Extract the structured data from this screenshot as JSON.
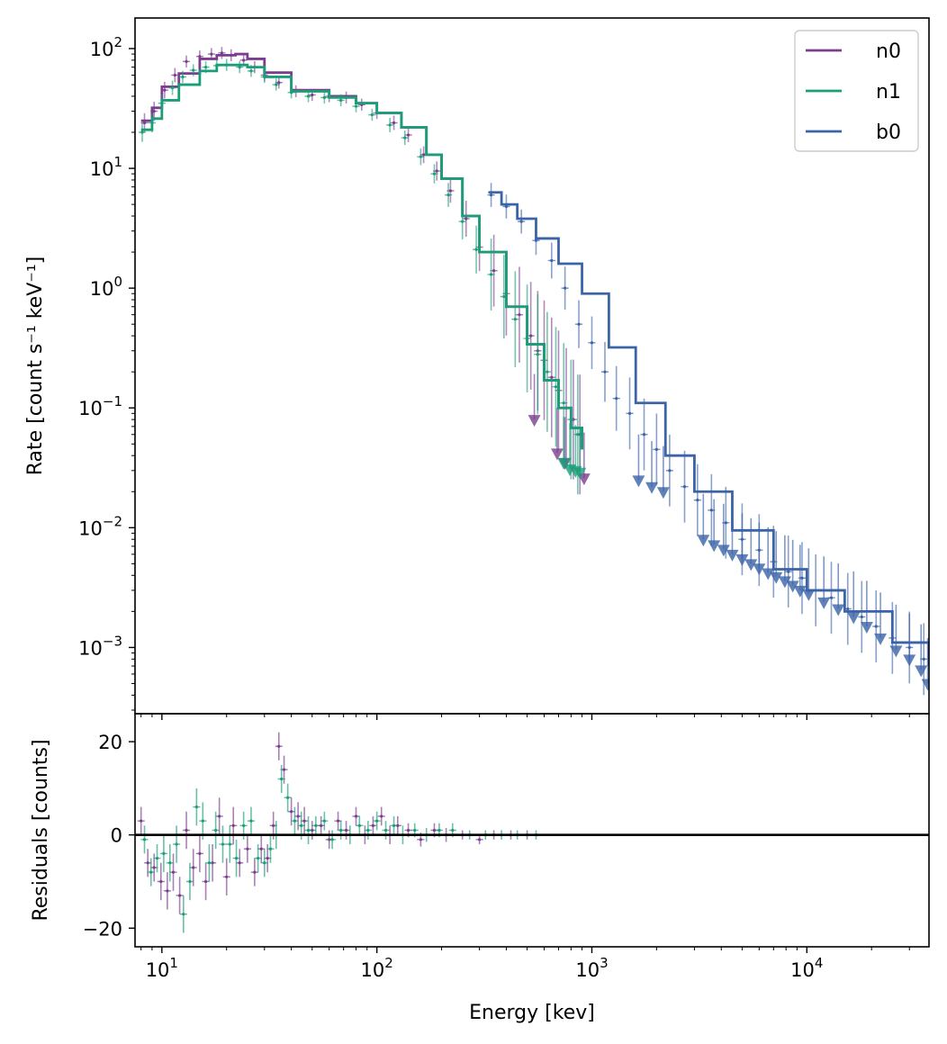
{
  "chart_data": [
    {
      "type": "line",
      "panel": "spectrum",
      "title": "",
      "xlabel": "",
      "ylabel": "Rate [count s⁻¹ keV⁻¹]",
      "xscale": "log",
      "yscale": "log",
      "xlim": [
        7.5,
        37000
      ],
      "ylim": [
        0.00028,
        180
      ],
      "x_ticks": [
        10,
        100,
        1000,
        10000
      ],
      "y_ticks": [
        0.001,
        0.01,
        0.1,
        1,
        10,
        100
      ],
      "y_tick_labels": [
        {
          "base": "10",
          "exp": "−3"
        },
        {
          "base": "10",
          "exp": "−2"
        },
        {
          "base": "10",
          "exp": "−1"
        },
        {
          "base": "10",
          "exp": "0"
        },
        {
          "base": "10",
          "exp": "1"
        },
        {
          "base": "10",
          "exp": "2"
        }
      ],
      "legend": {
        "placement": "top-right",
        "entries": [
          "n0",
          "n1",
          "b0"
        ]
      },
      "series": [
        {
          "name": "n0",
          "color": "#7b3d8f",
          "model": {
            "x": [
              8,
              9,
              10,
              12,
              15,
              18,
              22,
              25,
              30,
              40,
              60,
              80,
              100,
              130,
              170,
              200,
              250,
              300,
              400,
              500,
              600,
              700,
              800,
              900
            ],
            "y": [
              25,
              32,
              48,
              62,
              82,
              88,
              90,
              82,
              63,
              45,
              40,
              35,
              29,
              22,
              13,
              8.2,
              4.0,
              2.0,
              0.7,
              0.34,
              0.17,
              0.1,
              0.068,
              0.045
            ]
          },
          "data": {
            "x": [
              8.3,
              9.2,
              10.3,
              11.5,
              13,
              15,
              17,
              19,
              21,
              24,
              27,
              30,
              35,
              42,
              50,
              60,
              72,
              85,
              100,
              120,
              140,
              165,
              190,
              220,
              260,
              300,
              350,
              400,
              460,
              520,
              560,
              600,
              650,
              700,
              760,
              820,
              880
            ],
            "y": [
              24,
              30,
              45,
              60,
              78,
              86,
              90,
              92,
              88,
              80,
              70,
              60,
              52,
              44,
              41,
              40,
              39,
              34,
              29,
              24,
              19,
              13,
              9.5,
              6.5,
              3.8,
              2.2,
              1.4,
              0.9,
              0.6,
              0.4,
              0.3,
              0.25,
              0.18,
              0.14,
              0.1,
              0.08,
              0.06
            ],
            "err": [
              0.08,
              0.08,
              0.07,
              0.06,
              0.05,
              0.05,
              0.05,
              0.05,
              0.05,
              0.05,
              0.05,
              0.05,
              0.05,
              0.05,
              0.05,
              0.05,
              0.05,
              0.05,
              0.05,
              0.06,
              0.06,
              0.07,
              0.08,
              0.1,
              0.15,
              0.2,
              0.3,
              0.35,
              0.4,
              0.45,
              0.5,
              0.5,
              0.5,
              0.5,
              0.5,
              0.5,
              0.5
            ]
          },
          "upper_limits": {
            "x": [
              540,
              690,
              750,
              920
            ],
            "y": [
              0.08,
              0.042,
              0.035,
              0.026
            ]
          }
        },
        {
          "name": "n1",
          "color": "#1a9e78",
          "model": {
            "x": [
              8,
              9,
              10,
              12,
              15,
              18,
              22,
              25,
              30,
              40,
              60,
              80,
              100,
              130,
              170,
              200,
              250,
              300,
              400,
              500,
              600,
              700,
              800,
              900
            ],
            "y": [
              21,
              26,
              37,
              50,
              65,
              73,
              73,
              70,
              58,
              44,
              39,
              35,
              29,
              22,
              13,
              8.2,
              4.0,
              2.0,
              0.7,
              0.34,
              0.17,
              0.1,
              0.068,
              0.045
            ]
          },
          "data": {
            "x": [
              8.1,
              9,
              10,
              11.2,
              12.5,
              14,
              16,
              18,
              20,
              23,
              26,
              30,
              34,
              40,
              48,
              57,
              68,
              80,
              95,
              115,
              135,
              160,
              185,
              215,
              250,
              290,
              340,
              390,
              440,
              500,
              560,
              620,
              680,
              740,
              800,
              860
            ],
            "y": [
              20,
              24,
              35,
              47,
              58,
              66,
              70,
              72,
              73,
              70,
              65,
              58,
              50,
              43,
              40,
              39,
              37,
              33,
              28,
              23,
              18,
              12.5,
              9,
              6,
              3.6,
              2.1,
              1.3,
              0.85,
              0.55,
              0.38,
              0.28,
              0.2,
              0.15,
              0.11,
              0.08,
              0.06
            ],
            "err": [
              0.08,
              0.08,
              0.07,
              0.06,
              0.05,
              0.05,
              0.05,
              0.05,
              0.05,
              0.05,
              0.05,
              0.05,
              0.05,
              0.05,
              0.05,
              0.05,
              0.05,
              0.05,
              0.05,
              0.06,
              0.06,
              0.07,
              0.08,
              0.1,
              0.15,
              0.2,
              0.3,
              0.35,
              0.4,
              0.45,
              0.5,
              0.5,
              0.5,
              0.5,
              0.5,
              0.5
            ]
          },
          "upper_limits": {
            "x": [
              740,
              790,
              840,
              880
            ],
            "y": [
              0.035,
              0.031,
              0.03,
              0.029
            ]
          }
        },
        {
          "name": "b0",
          "color": "#3a63a8",
          "model": {
            "x": [
              330,
              380,
              450,
              550,
              700,
              900,
              1200,
              1600,
              2200,
              3000,
              4500,
              7000,
              10000,
              15000,
              25000,
              37000
            ],
            "y": [
              6.3,
              5.0,
              3.8,
              2.6,
              1.6,
              0.9,
              0.32,
              0.11,
              0.04,
              0.02,
              0.0095,
              0.0045,
              0.003,
              0.002,
              0.0011,
              0.0007
            ]
          },
          "data": {
            "x": [
              340,
              400,
              470,
              550,
              650,
              750,
              870,
              1000,
              1150,
              1300,
              1500,
              1750,
              2000,
              2300,
              2700,
              3100,
              3600,
              4200,
              5000,
              6000,
              7000,
              8200,
              9500,
              11000,
              13000,
              15500,
              18000,
              21000,
              25000,
              30000,
              35000
            ],
            "y": [
              6.0,
              4.8,
              3.6,
              2.5,
              1.7,
              1.0,
              0.5,
              0.35,
              0.2,
              0.12,
              0.09,
              0.06,
              0.045,
              0.03,
              0.022,
              0.017,
              0.014,
              0.011,
              0.008,
              0.0065,
              0.0052,
              0.0043,
              0.0038,
              0.003,
              0.0026,
              0.0021,
              0.0018,
              0.0015,
              0.0012,
              0.001,
              0.0008
            ],
            "err": [
              0.1,
              0.1,
              0.1,
              0.12,
              0.15,
              0.18,
              0.2,
              0.22,
              0.25,
              0.27,
              0.3,
              0.3,
              0.3,
              0.3,
              0.3,
              0.3,
              0.3,
              0.3,
              0.3,
              0.3,
              0.3,
              0.3,
              0.3,
              0.3,
              0.3,
              0.3,
              0.3,
              0.3,
              0.3,
              0.3,
              0.3
            ]
          },
          "upper_limits": {
            "x": [
              1650,
              1900,
              2150,
              3300,
              3700,
              4100,
              4500,
              5000,
              5500,
              6000,
              6600,
              7200,
              7900,
              8600,
              9300,
              10200,
              12000,
              14000,
              16500,
              19000,
              22000,
              26000,
              30000,
              34000,
              36500
            ],
            "y": [
              0.025,
              0.022,
              0.02,
              0.008,
              0.0072,
              0.0066,
              0.006,
              0.0055,
              0.005,
              0.0046,
              0.0042,
              0.0039,
              0.0036,
              0.0033,
              0.003,
              0.0028,
              0.0024,
              0.0021,
              0.0018,
              0.0015,
              0.0012,
              0.00095,
              0.0008,
              0.00065,
              0.0005
            ]
          }
        }
      ]
    },
    {
      "type": "scatter",
      "panel": "residuals",
      "title": "",
      "xlabel": "Energy [kev]",
      "ylabel": "Residuals [counts]",
      "xscale": "log",
      "yscale": "linear",
      "xlim": [
        7.5,
        37000
      ],
      "ylim": [
        -24,
        26
      ],
      "x_ticks": [
        10,
        100,
        1000,
        10000
      ],
      "x_tick_labels": [
        {
          "base": "10",
          "exp": "1"
        },
        {
          "base": "10",
          "exp": "2"
        },
        {
          "base": "10",
          "exp": "3"
        },
        {
          "base": "10",
          "exp": "4"
        }
      ],
      "y_ticks": [
        20,
        0,
        -20
      ],
      "y_tick_labels": [
        "20",
        "0",
        "−20"
      ],
      "zero_line": 0,
      "series": [
        {
          "name": "n0",
          "color": "#7b3d8f",
          "x": [
            8,
            8.6,
            9.2,
            9.9,
            10.6,
            11.3,
            12.1,
            13,
            14,
            15,
            16,
            17.2,
            18.5,
            20,
            21.5,
            23,
            25,
            27,
            29,
            31,
            33,
            35,
            37,
            40,
            43,
            46,
            50,
            55,
            60,
            66,
            72,
            80,
            88,
            96,
            105,
            115,
            125,
            140,
            160,
            185,
            210,
            250,
            300,
            350,
            420,
            500
          ],
          "y": [
            3,
            -6,
            -7,
            -10,
            -12,
            -8,
            -13,
            1,
            -7,
            -4,
            -10,
            -6,
            4,
            -9,
            2,
            -6,
            -3,
            -8,
            -3,
            -5,
            2,
            19,
            14,
            5,
            4,
            3,
            1,
            2,
            -1,
            3,
            1,
            4,
            0,
            2,
            4,
            0,
            2,
            1,
            -1,
            1,
            0,
            0,
            -1,
            0,
            0,
            0
          ],
          "err": [
            3,
            3,
            3,
            4,
            4,
            4,
            4,
            4,
            4,
            4,
            4,
            4,
            4,
            4,
            4,
            3,
            3,
            3,
            3,
            3,
            3,
            3,
            3,
            3,
            3,
            3,
            2,
            2,
            2,
            2,
            2,
            2,
            2,
            2,
            2,
            2,
            2,
            1.5,
            1.5,
            1.5,
            1.5,
            1,
            1,
            1,
            1,
            1
          ]
        },
        {
          "name": "n1",
          "color": "#1a9e78",
          "x": [
            8.3,
            8.9,
            9.5,
            10.2,
            10.9,
            11.7,
            12.6,
            13.5,
            14.5,
            15.5,
            16.6,
            17.8,
            19.2,
            20.7,
            22.2,
            24,
            26,
            28,
            30,
            32,
            34,
            36,
            38.5,
            41.5,
            44.5,
            48,
            52,
            57,
            62,
            68,
            75,
            83,
            91,
            100,
            110,
            120,
            132,
            150,
            170,
            195,
            225,
            270,
            320,
            380,
            450,
            550
          ],
          "y": [
            -1,
            -8,
            -5,
            -4,
            -6,
            -2,
            -17,
            -10,
            6,
            3,
            -6,
            1,
            -2,
            -2,
            -5,
            2,
            3,
            -5,
            -6,
            -3,
            0,
            12,
            8,
            3,
            2,
            1,
            2,
            3,
            -1,
            1,
            0,
            2,
            1,
            3,
            1,
            2,
            0,
            1,
            0,
            1,
            1,
            0,
            0,
            0,
            0,
            0
          ],
          "err": [
            3,
            3,
            3,
            4,
            4,
            4,
            4,
            4,
            4,
            4,
            4,
            4,
            4,
            4,
            4,
            3,
            3,
            3,
            3,
            3,
            3,
            3,
            3,
            3,
            3,
            3,
            2,
            2,
            2,
            2,
            2,
            2,
            2,
            2,
            2,
            2,
            2,
            1.5,
            1.5,
            1.5,
            1.5,
            1,
            1,
            1,
            1,
            1
          ]
        }
      ]
    }
  ]
}
